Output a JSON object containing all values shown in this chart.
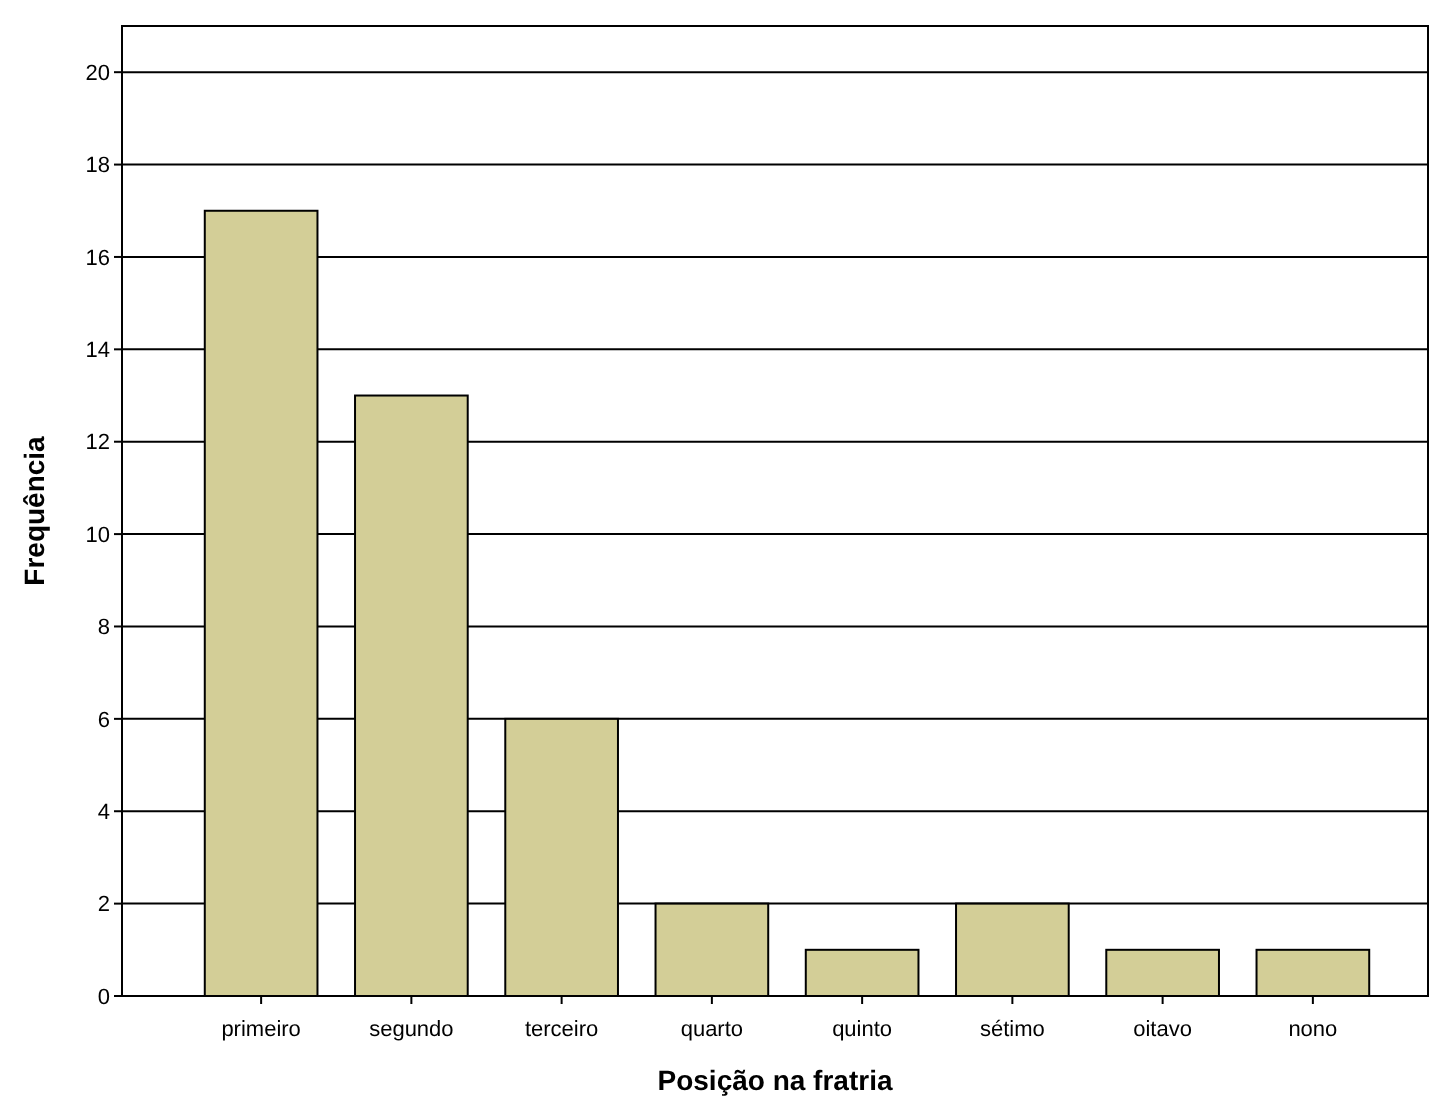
{
  "chart_data": {
    "type": "bar",
    "xlabel": "Posição na fratria",
    "ylabel": "Frequência",
    "categories": [
      "primeiro",
      "segundo",
      "terceiro",
      "quarto",
      "quinto",
      "sétimo",
      "oitavo",
      "nono"
    ],
    "values": [
      17,
      13,
      6,
      2,
      1,
      2,
      1,
      1
    ],
    "color": "#d3ce97",
    "ylim": [
      0,
      21
    ],
    "yticks": [
      0,
      2,
      4,
      6,
      8,
      10,
      12,
      14,
      16,
      18,
      20
    ],
    "grid": "y"
  }
}
